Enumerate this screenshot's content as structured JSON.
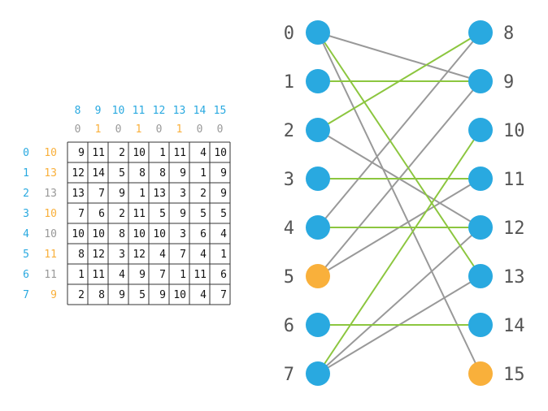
{
  "colors": {
    "blue": "#29a9e0",
    "orange": "#f9b03b",
    "green": "#8cc63f",
    "gray": "#999999",
    "text": "#555555",
    "grid": "#333333",
    "cell_text": "#111111",
    "weight_gray": "#999999"
  },
  "matrix": {
    "col_labels": [
      "8",
      "9",
      "10",
      "11",
      "12",
      "13",
      "14",
      "15"
    ],
    "col_potentials": [
      {
        "v": "0",
        "c": "gray"
      },
      {
        "v": "1",
        "c": "orange"
      },
      {
        "v": "0",
        "c": "gray"
      },
      {
        "v": "1",
        "c": "orange"
      },
      {
        "v": "0",
        "c": "gray"
      },
      {
        "v": "1",
        "c": "orange"
      },
      {
        "v": "0",
        "c": "gray"
      },
      {
        "v": "0",
        "c": "gray"
      }
    ],
    "row_labels": [
      "0",
      "1",
      "2",
      "3",
      "4",
      "5",
      "6",
      "7"
    ],
    "row_potentials": [
      {
        "v": "10",
        "c": "orange"
      },
      {
        "v": "13",
        "c": "orange"
      },
      {
        "v": "13",
        "c": "gray"
      },
      {
        "v": "10",
        "c": "orange"
      },
      {
        "v": "10",
        "c": "gray"
      },
      {
        "v": "11",
        "c": "orange"
      },
      {
        "v": "11",
        "c": "gray"
      },
      {
        "v": "9",
        "c": "orange"
      }
    ],
    "cells": [
      [
        "9",
        "11",
        "2",
        "10",
        "1",
        "11",
        "4",
        "10"
      ],
      [
        "12",
        "14",
        "5",
        "8",
        "8",
        "9",
        "1",
        "9"
      ],
      [
        "13",
        "7",
        "9",
        "1",
        "13",
        "3",
        "2",
        "9"
      ],
      [
        "7",
        "6",
        "2",
        "11",
        "5",
        "9",
        "5",
        "5"
      ],
      [
        "10",
        "10",
        "8",
        "10",
        "10",
        "3",
        "6",
        "4"
      ],
      [
        "8",
        "12",
        "3",
        "12",
        "4",
        "7",
        "4",
        "1"
      ],
      [
        "1",
        "11",
        "4",
        "9",
        "7",
        "1",
        "11",
        "6"
      ],
      [
        "2",
        "8",
        "9",
        "5",
        "9",
        "10",
        "4",
        "7"
      ]
    ]
  },
  "graph": {
    "left_nodes": [
      {
        "id": "0",
        "color": "blue"
      },
      {
        "id": "1",
        "color": "blue"
      },
      {
        "id": "2",
        "color": "blue"
      },
      {
        "id": "3",
        "color": "blue"
      },
      {
        "id": "4",
        "color": "blue"
      },
      {
        "id": "5",
        "color": "orange"
      },
      {
        "id": "6",
        "color": "blue"
      },
      {
        "id": "7",
        "color": "blue"
      }
    ],
    "right_nodes": [
      {
        "id": "8",
        "color": "blue"
      },
      {
        "id": "9",
        "color": "blue"
      },
      {
        "id": "10",
        "color": "blue"
      },
      {
        "id": "11",
        "color": "blue"
      },
      {
        "id": "12",
        "color": "blue"
      },
      {
        "id": "13",
        "color": "blue"
      },
      {
        "id": "14",
        "color": "blue"
      },
      {
        "id": "15",
        "color": "orange"
      }
    ],
    "edges": [
      {
        "from": "0",
        "to": "9",
        "color": "gray"
      },
      {
        "from": "0",
        "to": "15",
        "color": "gray"
      },
      {
        "from": "2",
        "to": "12",
        "color": "gray"
      },
      {
        "from": "4",
        "to": "8",
        "color": "gray"
      },
      {
        "from": "5",
        "to": "9",
        "color": "gray"
      },
      {
        "from": "5",
        "to": "11",
        "color": "gray"
      },
      {
        "from": "7",
        "to": "12",
        "color": "gray"
      },
      {
        "from": "7",
        "to": "13",
        "color": "gray"
      },
      {
        "from": "0",
        "to": "13",
        "color": "green"
      },
      {
        "from": "1",
        "to": "9",
        "color": "green"
      },
      {
        "from": "2",
        "to": "8",
        "color": "green"
      },
      {
        "from": "3",
        "to": "11",
        "color": "green"
      },
      {
        "from": "4",
        "to": "12",
        "color": "green"
      },
      {
        "from": "6",
        "to": "14",
        "color": "green"
      },
      {
        "from": "7",
        "to": "10",
        "color": "green"
      }
    ]
  }
}
